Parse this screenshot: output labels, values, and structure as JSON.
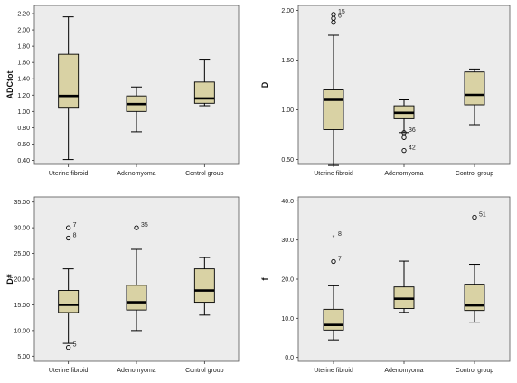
{
  "colors": {
    "plot_bg": "#ececec",
    "box_fill": "#d9d2a4",
    "line": "#000000"
  },
  "chart_data": [
    {
      "type": "boxplot",
      "ylabel": "ADCtot",
      "ylim": [
        0.35,
        2.3
      ],
      "yticks": [
        "0.40",
        "0.60",
        "0.80",
        "1.00",
        "1.20",
        "1.40",
        "1.60",
        "1.80",
        "2.00",
        "2.20"
      ],
      "categories": [
        "Uterine fibroid",
        "Adenomyoma",
        "Control group"
      ],
      "boxes": [
        {
          "min": 0.41,
          "q1": 1.04,
          "median": 1.19,
          "q3": 1.7,
          "max": 2.16,
          "outliers": []
        },
        {
          "min": 0.75,
          "q1": 1.0,
          "median": 1.09,
          "q3": 1.19,
          "max": 1.3,
          "outliers": []
        },
        {
          "min": 1.07,
          "q1": 1.1,
          "median": 1.16,
          "q3": 1.36,
          "max": 1.64,
          "outliers": []
        }
      ]
    },
    {
      "type": "boxplot",
      "ylabel": "D",
      "ylim": [
        0.45,
        2.05
      ],
      "yticks": [
        "0.50",
        "1.00",
        "1.50",
        "2.00"
      ],
      "categories": [
        "Uterine fibroid",
        "Adenomyoma",
        "Control group"
      ],
      "boxes": [
        {
          "min": 0.44,
          "q1": 0.8,
          "median": 1.1,
          "q3": 1.2,
          "max": 1.75,
          "outliers": [
            {
              "value": 1.96,
              "label": "15",
              "marker": "circle"
            },
            {
              "value": 1.92,
              "label": "6",
              "marker": "circle"
            },
            {
              "value": 1.88,
              "label": "",
              "marker": "circle"
            }
          ]
        },
        {
          "min": 0.77,
          "q1": 0.91,
          "median": 0.97,
          "q3": 1.04,
          "max": 1.1,
          "outliers": [
            {
              "value": 0.77,
              "label": "36",
              "marker": "circle"
            },
            {
              "value": 0.72,
              "label": "",
              "marker": "circle"
            },
            {
              "value": 0.59,
              "label": "42",
              "marker": "circle"
            }
          ]
        },
        {
          "min": 0.85,
          "q1": 1.05,
          "median": 1.15,
          "q3": 1.38,
          "max": 1.41,
          "outliers": []
        }
      ]
    },
    {
      "type": "boxplot",
      "ylabel": "D#",
      "ylim": [
        4.0,
        36.0
      ],
      "yticks": [
        "5.00",
        "10.00",
        "15.00",
        "20.00",
        "25.00",
        "30.00",
        "35.00"
      ],
      "categories": [
        "Uterine fibroid",
        "Adenomyoma",
        "Control group"
      ],
      "boxes": [
        {
          "min": 7.5,
          "q1": 13.5,
          "median": 15.0,
          "q3": 17.8,
          "max": 22.0,
          "outliers": [
            {
              "value": 30.0,
              "label": "7",
              "marker": "circle"
            },
            {
              "value": 28.0,
              "label": "8",
              "marker": "circle"
            },
            {
              "value": 6.7,
              "label": "5",
              "marker": "circle"
            }
          ]
        },
        {
          "min": 10.0,
          "q1": 14.0,
          "median": 15.5,
          "q3": 18.8,
          "max": 25.8,
          "outliers": [
            {
              "value": 30.0,
              "label": "35",
              "marker": "circle"
            }
          ]
        },
        {
          "min": 13.0,
          "q1": 15.5,
          "median": 17.8,
          "q3": 22.0,
          "max": 24.2,
          "outliers": []
        }
      ]
    },
    {
      "type": "boxplot",
      "ylabel": "f",
      "ylim": [
        -1.0,
        41.0
      ],
      "yticks": [
        "0.0",
        "10.0",
        "20.0",
        "30.0",
        "40.0"
      ],
      "categories": [
        "Uterine fibroid",
        "Adenomyoma",
        "Control group"
      ],
      "boxes": [
        {
          "min": 4.5,
          "q1": 7.0,
          "median": 8.3,
          "q3": 12.3,
          "max": 18.3,
          "outliers": [
            {
              "value": 30.8,
              "label": "8",
              "marker": "star"
            },
            {
              "value": 24.5,
              "label": "7",
              "marker": "circle"
            }
          ]
        },
        {
          "min": 11.5,
          "q1": 12.5,
          "median": 15.0,
          "q3": 18.0,
          "max": 24.6,
          "outliers": []
        },
        {
          "min": 9.0,
          "q1": 12.0,
          "median": 13.3,
          "q3": 18.7,
          "max": 23.8,
          "outliers": [
            {
              "value": 35.8,
              "label": "51",
              "marker": "circle"
            }
          ]
        }
      ]
    }
  ]
}
